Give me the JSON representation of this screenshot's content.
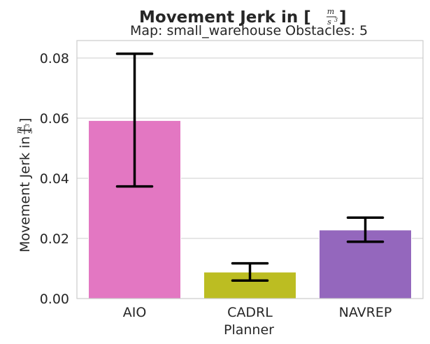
{
  "chart_data": {
    "type": "bar",
    "title_prefix": "Movement Jerk in [",
    "title_suffix": "]",
    "unit_numerator": "m",
    "unit_denominator": "s",
    "unit_exponent": "3",
    "subtitle": "Map: small_warehouse Obstacles: 5",
    "xlabel": "Planner",
    "ylabel_prefix": "Movement Jerk in [",
    "ylabel_suffix": "]",
    "categories": [
      "AIO",
      "CADRL",
      "NAVREP"
    ],
    "values": [
      0.0592,
      0.0088,
      0.0228
    ],
    "error_low": [
      0.0373,
      0.006,
      0.0189
    ],
    "error_high": [
      0.0814,
      0.0117,
      0.0269
    ],
    "colors": [
      "#e377c2",
      "#bcbd22",
      "#9467bd"
    ],
    "ylim": [
      0,
      0.0858
    ],
    "yticks": [
      "0.00",
      "0.02",
      "0.04",
      "0.06",
      "0.08"
    ],
    "ytick_values": [
      0,
      0.02,
      0.04,
      0.06,
      0.08
    ],
    "grid": true
  }
}
